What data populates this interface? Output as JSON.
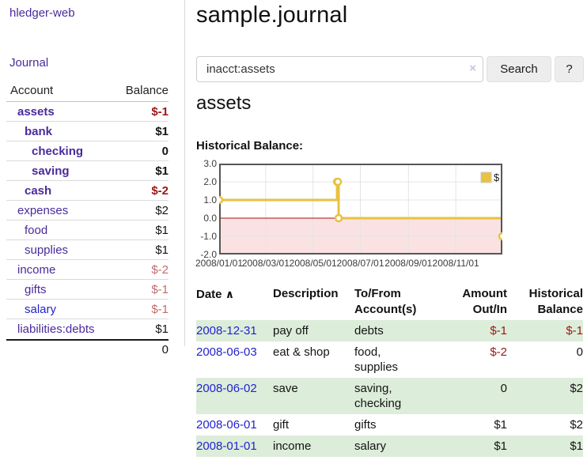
{
  "app": {
    "brand": "hledger-web",
    "nav_journal": "Journal"
  },
  "colors": {
    "link_purple": "#4a2a9b",
    "link_blue": "#2323cf",
    "negative_red": "#9b1717",
    "negative_muted_rose": "#c06c6c",
    "row_stripe_green": "#dcedd9",
    "chart_line_gold": "#e8c240",
    "chart_negative_region_pink": "#fbe2e2",
    "chart_zero_line_red": "#ab0e0e"
  },
  "sidebar": {
    "header": {
      "account": "Account",
      "balance": "Balance"
    },
    "items": [
      {
        "name": "assets",
        "depth": 1,
        "bold": true,
        "balance": "$-1",
        "balance_style": "neg"
      },
      {
        "name": "bank",
        "depth": 2,
        "bold": true,
        "balance": "$1",
        "balance_style": "pos"
      },
      {
        "name": "checking",
        "depth": 3,
        "bold": true,
        "balance": "0",
        "balance_style": "pos"
      },
      {
        "name": "saving",
        "depth": 3,
        "bold": true,
        "balance": "$1",
        "balance_style": "pos"
      },
      {
        "name": "cash",
        "depth": 2,
        "bold": true,
        "balance": "$-2",
        "balance_style": "neg"
      },
      {
        "name": "expenses",
        "depth": 1,
        "bold": false,
        "balance": "$2",
        "balance_style": "pos"
      },
      {
        "name": "food",
        "depth": 2,
        "bold": false,
        "balance": "$1",
        "balance_style": "pos"
      },
      {
        "name": "supplies",
        "depth": 2,
        "bold": false,
        "balance": "$1",
        "balance_style": "pos"
      },
      {
        "name": "income",
        "depth": 1,
        "bold": false,
        "balance": "$-2",
        "balance_style": "negmuted"
      },
      {
        "name": "gifts",
        "depth": 2,
        "bold": false,
        "balance": "$-1",
        "balance_style": "negmuted"
      },
      {
        "name": "salary",
        "depth": 2,
        "bold": false,
        "balance": "$-1",
        "balance_style": "negmuted",
        "link_style": "blue"
      },
      {
        "name": "liabilities:debts",
        "depth": 1,
        "bold": false,
        "balance": "$1",
        "balance_style": "pos"
      }
    ],
    "total": "0"
  },
  "header": {
    "title": "sample.journal"
  },
  "search": {
    "value": "inacct:assets",
    "clear_label": "×",
    "button": "Search",
    "help": "?"
  },
  "account_page": {
    "title": "assets",
    "chart_label": "Historical Balance:"
  },
  "chart_data": {
    "type": "line",
    "title": "Historical Balance",
    "legend": "$",
    "series": [
      {
        "name": "$",
        "steps": true,
        "points": [
          {
            "date": "2008-01-01",
            "value": 1
          },
          {
            "date": "2008-06-01",
            "value": 2
          },
          {
            "date": "2008-06-02",
            "value": 2
          },
          {
            "date": "2008-06-03",
            "value": 0
          },
          {
            "date": "2008-12-31",
            "value": -1
          }
        ]
      }
    ],
    "x_start": "2008-01-01",
    "x_span_days": 365,
    "x_ticks": [
      {
        "label": "2008/01/01",
        "day": 0
      },
      {
        "label": "2008/03/01",
        "day": 60
      },
      {
        "label": "2008/05/01",
        "day": 121
      },
      {
        "label": "2008/07/01",
        "day": 182
      },
      {
        "label": "2008/09/01",
        "day": 244
      },
      {
        "label": "2008/11/01",
        "day": 305
      }
    ],
    "y_ticks": [
      {
        "label": "3.0",
        "value": 3
      },
      {
        "label": "2.0",
        "value": 2
      },
      {
        "label": "1.0",
        "value": 1
      },
      {
        "label": "0.0",
        "value": 0
      },
      {
        "label": "-1.0",
        "value": -1
      },
      {
        "label": "-2.0",
        "value": -2
      }
    ],
    "ylim": [
      -2,
      3
    ],
    "grid": true,
    "legend_position": "top-right",
    "colors": {
      "line": "#e8c240",
      "marker_fill": "#ffffff",
      "negative_region": "#fbe2e2",
      "zero_line": "#ab0e0e",
      "grid": "#e4e4e4",
      "border": "#565656"
    }
  },
  "register": {
    "headers": {
      "date": "Date",
      "sort_icon": "∧",
      "description": "Description",
      "tofrom": "To/From Account(s)",
      "amount": "Amount Out/In",
      "balance": "Historical Balance"
    },
    "rows": [
      {
        "date": "2008-12-31",
        "description": "pay off",
        "accounts": "debts",
        "amount": "$-1",
        "amount_neg": true,
        "balance": "$-1",
        "balance_neg": true
      },
      {
        "date": "2008-06-03",
        "description": "eat & shop",
        "accounts": "food, supplies",
        "amount": "$-2",
        "amount_neg": true,
        "balance": "0",
        "balance_neg": false
      },
      {
        "date": "2008-06-02",
        "description": "save",
        "accounts": "saving, checking",
        "amount": "0",
        "amount_neg": false,
        "balance": "$2",
        "balance_neg": false
      },
      {
        "date": "2008-06-01",
        "description": "gift",
        "accounts": "gifts",
        "amount": "$1",
        "amount_neg": false,
        "balance": "$2",
        "balance_neg": false
      },
      {
        "date": "2008-01-01",
        "description": "income",
        "accounts": "salary",
        "amount": "$1",
        "amount_neg": false,
        "balance": "$1",
        "balance_neg": false
      }
    ]
  }
}
